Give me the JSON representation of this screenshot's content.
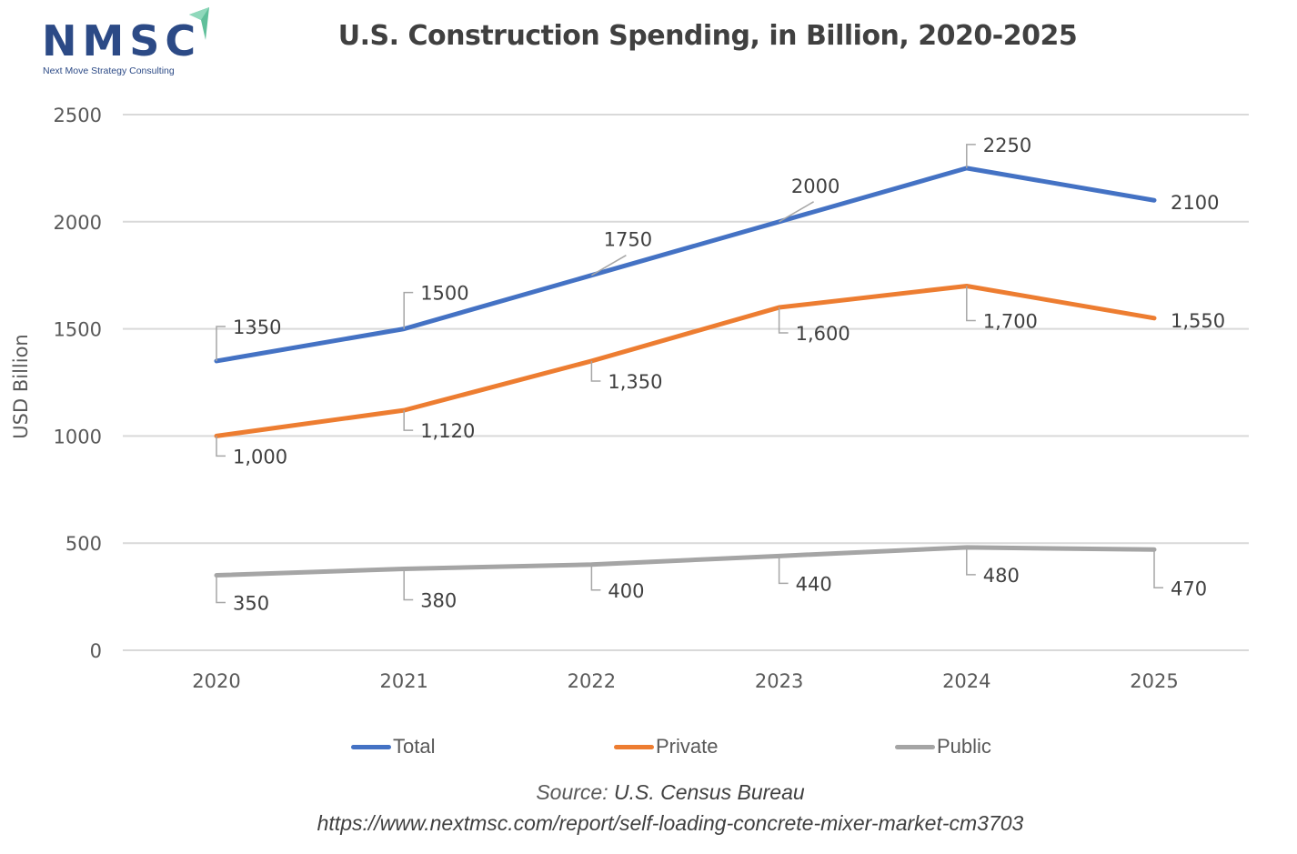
{
  "logo": {
    "name": "NMSC",
    "tagline": "Next Move Strategy Consulting",
    "brand_color": "#2c4a86",
    "accent_color": "#5fbf9a"
  },
  "chart_data": {
    "type": "line",
    "title": "U.S. Construction Spending, in Billion, 2020-2025",
    "xlabel": "",
    "ylabel": "USD Billion",
    "categories": [
      "2020",
      "2021",
      "2022",
      "2023",
      "2024",
      "2025"
    ],
    "ylim": [
      0,
      2500
    ],
    "yticks": [
      0,
      500,
      1000,
      1500,
      2000,
      2500
    ],
    "ytick_labels": [
      "0",
      "500",
      "1000",
      "1500",
      "2000",
      "2500"
    ],
    "grid": true,
    "legend_position": "bottom",
    "series": [
      {
        "name": "Total",
        "color": "#4472c4",
        "values": [
          1350,
          1500,
          1750,
          2000,
          2250,
          2100
        ],
        "labels": [
          "1350",
          "1500",
          "1750",
          "2000",
          "2250",
          "2100"
        ]
      },
      {
        "name": "Private",
        "color": "#ed7d31",
        "values": [
          1000,
          1120,
          1350,
          1600,
          1700,
          1550
        ],
        "labels": [
          "1,000",
          "1,120",
          "1,350",
          "1,600",
          "1,700",
          "1,550"
        ]
      },
      {
        "name": "Public",
        "color": "#a5a5a5",
        "values": [
          350,
          380,
          400,
          440,
          480,
          470
        ],
        "labels": [
          "350",
          "380",
          "400",
          "440",
          "480",
          "470"
        ]
      }
    ]
  },
  "footer": {
    "source_label": "Source:",
    "source_value": "U.S. Census Bureau",
    "url": "https://www.nextmsc.com/report/self-loading-concrete-mixer-market-cm3703"
  }
}
